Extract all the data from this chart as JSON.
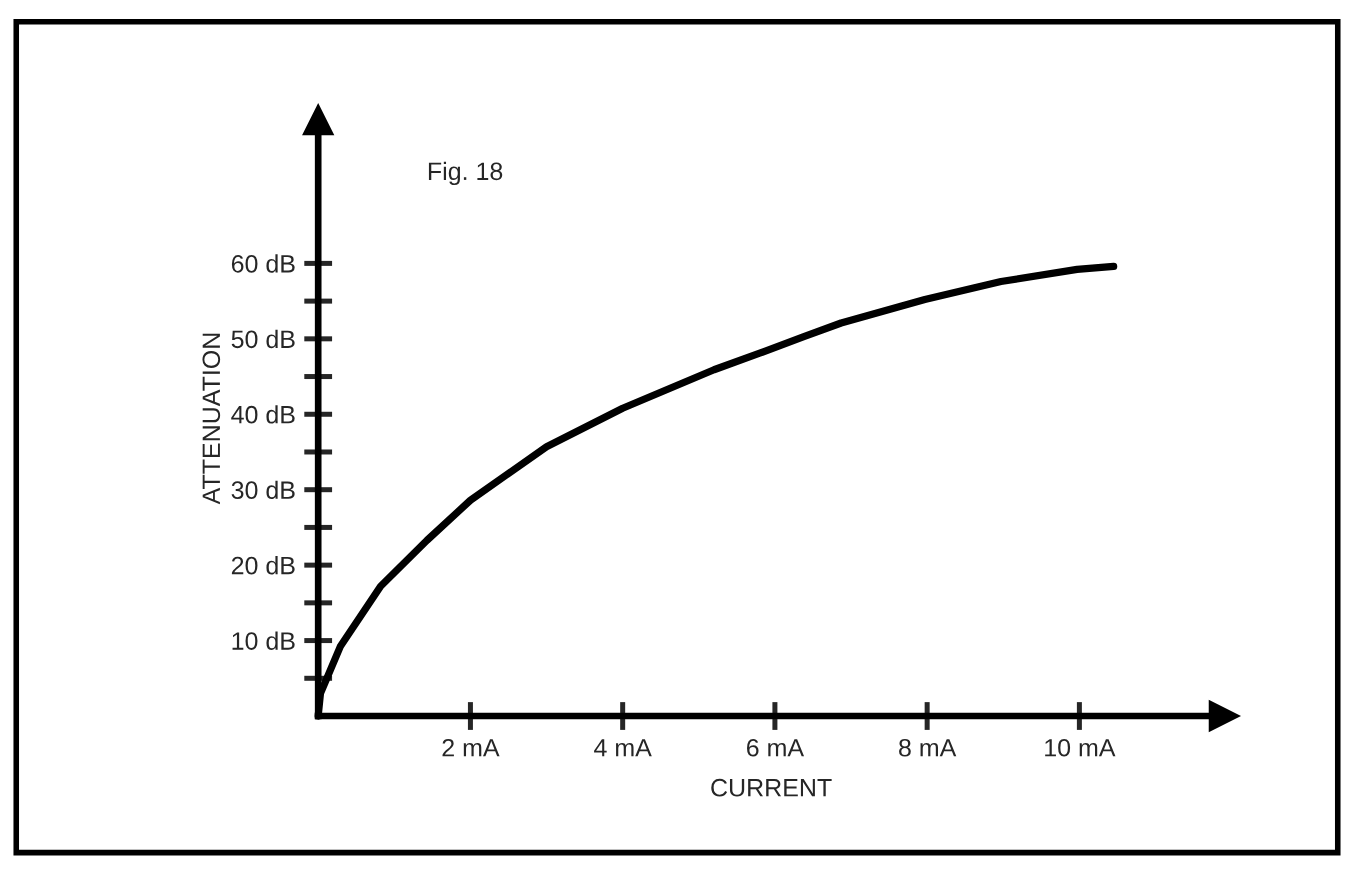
{
  "chart_data": {
    "type": "line",
    "xlabel": "CURRENT",
    "ylabel": "ATTENUATION",
    "annotations": [
      "Fig. 18"
    ],
    "x": [
      0,
      0.03,
      0.29,
      0.82,
      1.43,
      2.0,
      3.0,
      4.0,
      5.2,
      5.8,
      6.38,
      6.87,
      7.97,
      8.97,
      9.97,
      10.45
    ],
    "series": [
      {
        "color": "#000000",
        "values": [
          0,
          3.0,
          9.2,
          17.2,
          23.3,
          28.6,
          35.7,
          40.8,
          45.9,
          48.1,
          50.3,
          52.1,
          55.2,
          57.6,
          59.2,
          59.6
        ]
      }
    ],
    "xlim": [
      0,
      11.9
    ],
    "ylim": [
      0,
      79
    ],
    "xticks": [
      {
        "value": 2,
        "label": "2 mA"
      },
      {
        "value": 4,
        "label": "4 mA"
      },
      {
        "value": 6,
        "label": "6 mA"
      },
      {
        "value": 8,
        "label": "8 mA"
      },
      {
        "value": 10,
        "label": "10 mA"
      }
    ],
    "yticks": [
      {
        "value": 5,
        "label": null
      },
      {
        "value": 10,
        "label": "10 dB"
      },
      {
        "value": 15,
        "label": null
      },
      {
        "value": 20,
        "label": "20 dB"
      },
      {
        "value": 25,
        "label": null
      },
      {
        "value": 30,
        "label": "30 dB"
      },
      {
        "value": 35,
        "label": null
      },
      {
        "value": 40,
        "label": "40 dB"
      },
      {
        "value": 45,
        "label": null
      },
      {
        "value": 50,
        "label": "50 dB"
      },
      {
        "value": 55,
        "label": null
      },
      {
        "value": 60,
        "label": "60 dB"
      }
    ],
    "line_style": "solid",
    "marker": "none"
  }
}
